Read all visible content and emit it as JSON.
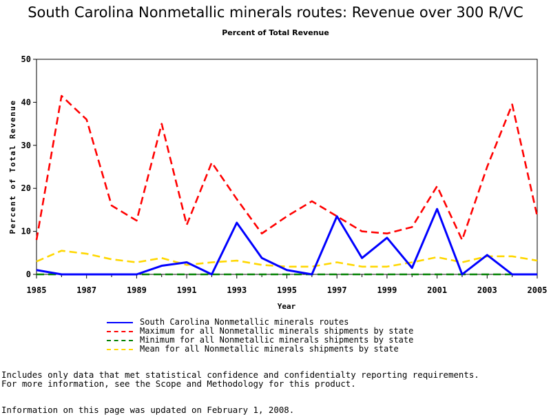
{
  "header": {
    "title": "South Carolina Nonmetallic minerals routes: Revenue over 300 R/VC",
    "subtitle": "Percent of Total Revenue"
  },
  "chart_data": {
    "type": "line",
    "title": "South Carolina Nonmetallic minerals routes: Revenue over 300 R/VC",
    "subtitle": "Percent of Total Revenue",
    "xlabel": "Year",
    "ylabel": "Percent of Total Revenue",
    "xlim": [
      1985,
      2005
    ],
    "ylim": [
      0,
      50
    ],
    "x_ticks": [
      "1985",
      "1987",
      "1989",
      "1991",
      "1993",
      "1995",
      "1997",
      "1999",
      "2001",
      "2003",
      "2005"
    ],
    "y_ticks": [
      "0",
      "10",
      "20",
      "30",
      "40",
      "50"
    ],
    "x": [
      1985,
      1986,
      1987,
      1988,
      1989,
      1990,
      1991,
      1992,
      1993,
      1994,
      1995,
      1996,
      1997,
      1998,
      1999,
      2000,
      2001,
      2002,
      2003,
      2004,
      2005
    ],
    "grid": false,
    "legend_position": "bottom",
    "series": [
      {
        "name": "South Carolina Nonmetallic minerals routes",
        "color": "#0000ff",
        "style": "solid",
        "values": [
          1.0,
          0.0,
          0.0,
          0.0,
          0.0,
          2.0,
          2.8,
          0.0,
          12.0,
          3.8,
          1.0,
          0.0,
          13.5,
          3.8,
          8.5,
          1.5,
          15.2,
          0.0,
          4.5,
          0.0,
          0.0
        ]
      },
      {
        "name": "Maximum for all Nonmetallic minerals shipments by state",
        "color": "#ff0000",
        "style": "dashed",
        "values": [
          8.0,
          41.5,
          36.0,
          16.0,
          12.5,
          35.0,
          11.5,
          26.0,
          17.5,
          9.5,
          13.5,
          17.0,
          13.5,
          10.0,
          9.5,
          11.0,
          20.5,
          8.0,
          25.0,
          39.5,
          13.5
        ]
      },
      {
        "name": "Minimum for all Nonmetallic minerals shipments by state",
        "color": "#008000",
        "style": "dashed",
        "values": [
          0,
          0,
          0,
          0,
          0,
          0,
          0,
          0,
          0,
          0,
          0,
          0,
          0,
          0,
          0,
          0,
          0,
          0,
          0,
          0,
          0
        ]
      },
      {
        "name": "Mean for all Nonmetallic minerals shipments by state",
        "color": "#ffd700",
        "style": "dashed",
        "values": [
          3.0,
          5.5,
          4.8,
          3.5,
          2.8,
          3.8,
          2.2,
          2.8,
          3.2,
          2.2,
          1.8,
          1.8,
          2.8,
          1.8,
          1.8,
          2.8,
          4.0,
          2.8,
          4.2,
          4.2,
          3.2
        ]
      }
    ]
  },
  "notes": {
    "line1": "Includes only data that met statistical confidence and confidentialty reporting requirements.",
    "line2": "For more information, see the Scope and Methodology for this product.",
    "line3": "Information on this page was updated on February 1, 2008."
  }
}
